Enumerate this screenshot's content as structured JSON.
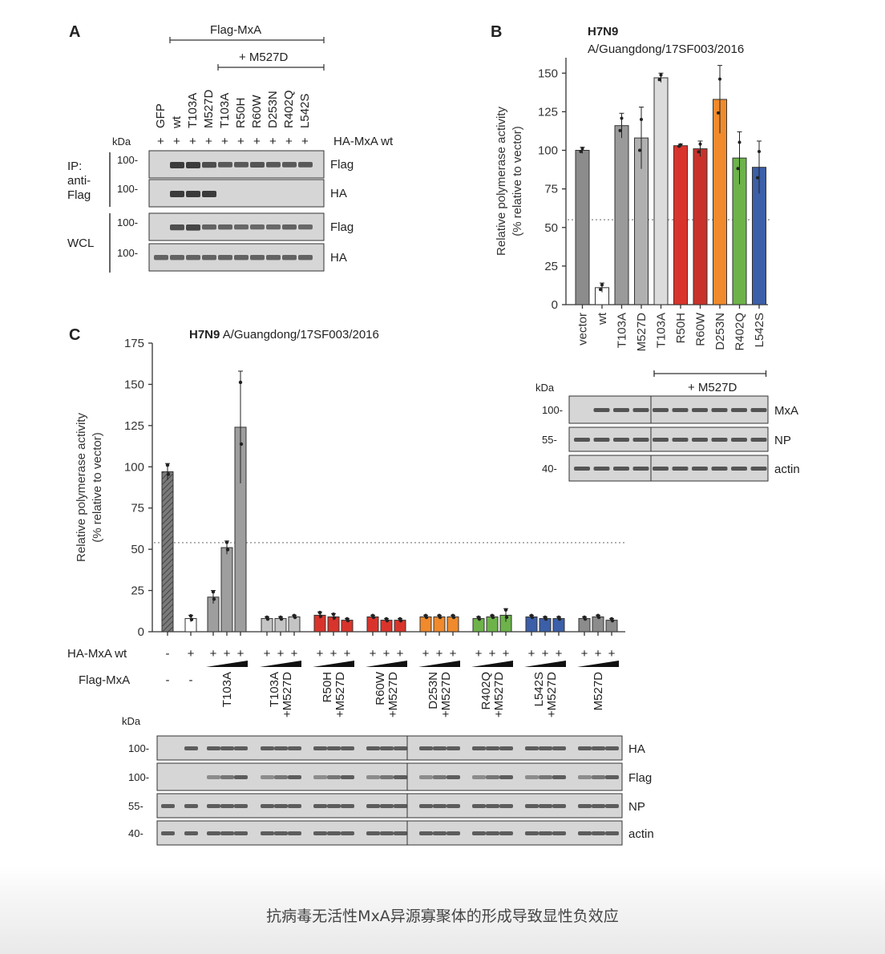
{
  "caption": "抗病毒无活性MxA异源寡聚体的形成导致显性负效应",
  "panel_a": {
    "letter": "A",
    "flag_label": "Flag-MxA",
    "m527d_bracket": "+ M527D",
    "lanes": [
      "GFP",
      "wt",
      "T103A",
      "M527D",
      "T103A",
      "R50H",
      "R60W",
      "D253N",
      "R402Q",
      "L542S"
    ],
    "kda_label": "kDa",
    "plus_sign": "+",
    "ha_row_label": "HA-MxA wt",
    "group_ip": "IP:\nanti-\nFlag",
    "group_wcl": "WCL",
    "blots": [
      {
        "kda": "100-",
        "label": "Flag",
        "bands": [
          0,
          1,
          1,
          0.8,
          0.7,
          0.7,
          0.75,
          0.7,
          0.7,
          0.7
        ]
      },
      {
        "kda": "100-",
        "label": "HA",
        "bands": [
          0,
          1,
          1,
          1,
          0,
          0,
          0,
          0,
          0,
          0
        ]
      },
      {
        "kda": "100-",
        "label": "Flag",
        "bands": [
          0,
          0.8,
          0.9,
          0.6,
          0.6,
          0.55,
          0.55,
          0.55,
          0.6,
          0.55
        ]
      },
      {
        "kda": "100-",
        "label": "HA",
        "bands": [
          0.6,
          0.6,
          0.6,
          0.6,
          0.6,
          0.6,
          0.6,
          0.6,
          0.6,
          0.6
        ]
      }
    ]
  },
  "panel_b": {
    "letter": "B",
    "title": "H7N9",
    "subtitle": "A/Guangdong/17SF003/2016",
    "m527d_bracket": "+ M527D",
    "kda_label": "kDa",
    "blots": [
      {
        "kda": "100-",
        "label": "MxA"
      },
      {
        "kda": "55-",
        "label": "NP"
      },
      {
        "kda": "40-",
        "label": "actin"
      }
    ]
  },
  "panel_c": {
    "letter": "C",
    "title_bold": "H7N9",
    "title_rest": " A/Guangdong/17SF003/2016",
    "ha_row_label": "HA-MxA wt",
    "flag_row_label": "Flag-MxA",
    "minus_sign": "-",
    "plus_sign": "+",
    "kda_label": "kDa",
    "blots": [
      {
        "kda": "100-",
        "label": "HA"
      },
      {
        "kda": "100-",
        "label": "Flag"
      },
      {
        "kda": "55-",
        "label": "NP"
      },
      {
        "kda": "40-",
        "label": "actin"
      }
    ]
  },
  "chart_data": [
    {
      "type": "bar",
      "panel": "B",
      "title": "H7N9",
      "subtitle": "A/Guangdong/17SF003/2016",
      "ylabel": "Relative polymerase activity\n(% relative to vector)",
      "ylim": [
        0,
        160
      ],
      "yticks": [
        0,
        25,
        50,
        75,
        100,
        125,
        150
      ],
      "threshold": 55,
      "categories": [
        "vector",
        "wt",
        "T103A",
        "M527D",
        "T103A",
        "R50H",
        "R60W",
        "D253N",
        "R402Q",
        "L542S"
      ],
      "values": [
        100,
        11,
        116,
        108,
        147,
        103,
        101,
        133,
        95,
        89
      ],
      "errors": [
        2,
        3,
        8,
        20,
        3,
        1,
        5,
        22,
        17,
        17
      ],
      "colors": [
        "#8c8c8c",
        "#ffffff",
        "#9a9a9a",
        "#b0b0b0",
        "#dcdcdc",
        "#d9342b",
        "#c8322a",
        "#f08a2c",
        "#6db34a",
        "#3b5fa8"
      ],
      "bracket_label": "+ M527D",
      "bracket_from": 4,
      "bracket_to": 9
    },
    {
      "type": "bar",
      "panel": "C",
      "title": "H7N9 A/Guangdong/17SF003/2016",
      "ylabel": "Relative polymerase activity\n(% relative to vector)",
      "ylim": [
        0,
        175
      ],
      "yticks": [
        0,
        25,
        50,
        75,
        100,
        125,
        150,
        175
      ],
      "threshold": 54,
      "groups": [
        {
          "label": "",
          "ha": "-",
          "flag": "-",
          "values": [
            97
          ],
          "errors": [
            5
          ],
          "color": "#888888",
          "hatched": true
        },
        {
          "label": "",
          "ha": "+",
          "flag": "-",
          "values": [
            8
          ],
          "errors": [
            2
          ],
          "color": "#ffffff"
        },
        {
          "label": "T103A",
          "ha": "+",
          "flag": "ramp",
          "values": [
            21,
            51,
            124
          ],
          "errors": [
            4,
            4,
            34
          ],
          "color": "#9e9e9e"
        },
        {
          "label": "T103A\n+M527D",
          "ha": "+",
          "flag": "ramp",
          "values": [
            8,
            8,
            9
          ],
          "errors": [
            1,
            1,
            1
          ],
          "color": "#c4c4c4"
        },
        {
          "label": "R50H\n+M527D",
          "ha": "+",
          "flag": "ramp",
          "values": [
            10,
            9,
            7
          ],
          "errors": [
            2,
            2,
            1
          ],
          "color": "#d9342b"
        },
        {
          "label": "R60W\n+M527D",
          "ha": "+",
          "flag": "ramp",
          "values": [
            9,
            7,
            7
          ],
          "errors": [
            1,
            1,
            1
          ],
          "color": "#d9342b"
        },
        {
          "label": "D253N\n+M527D",
          "ha": "+",
          "flag": "ramp",
          "values": [
            9,
            9,
            9
          ],
          "errors": [
            1,
            1,
            1
          ],
          "color": "#f08a2c"
        },
        {
          "label": "R402Q\n+M527D",
          "ha": "+",
          "flag": "ramp",
          "values": [
            8,
            9,
            10
          ],
          "errors": [
            1,
            1,
            4
          ],
          "color": "#6db34a"
        },
        {
          "label": "L542S\n+M527D",
          "ha": "+",
          "flag": "ramp",
          "values": [
            9,
            8,
            8
          ],
          "errors": [
            1,
            1,
            1
          ],
          "color": "#3b5fa8"
        },
        {
          "label": "M527D",
          "ha": "+",
          "flag": "ramp",
          "values": [
            8,
            9,
            7
          ],
          "errors": [
            1,
            1,
            1
          ],
          "color": "#8c8c8c"
        }
      ]
    }
  ]
}
